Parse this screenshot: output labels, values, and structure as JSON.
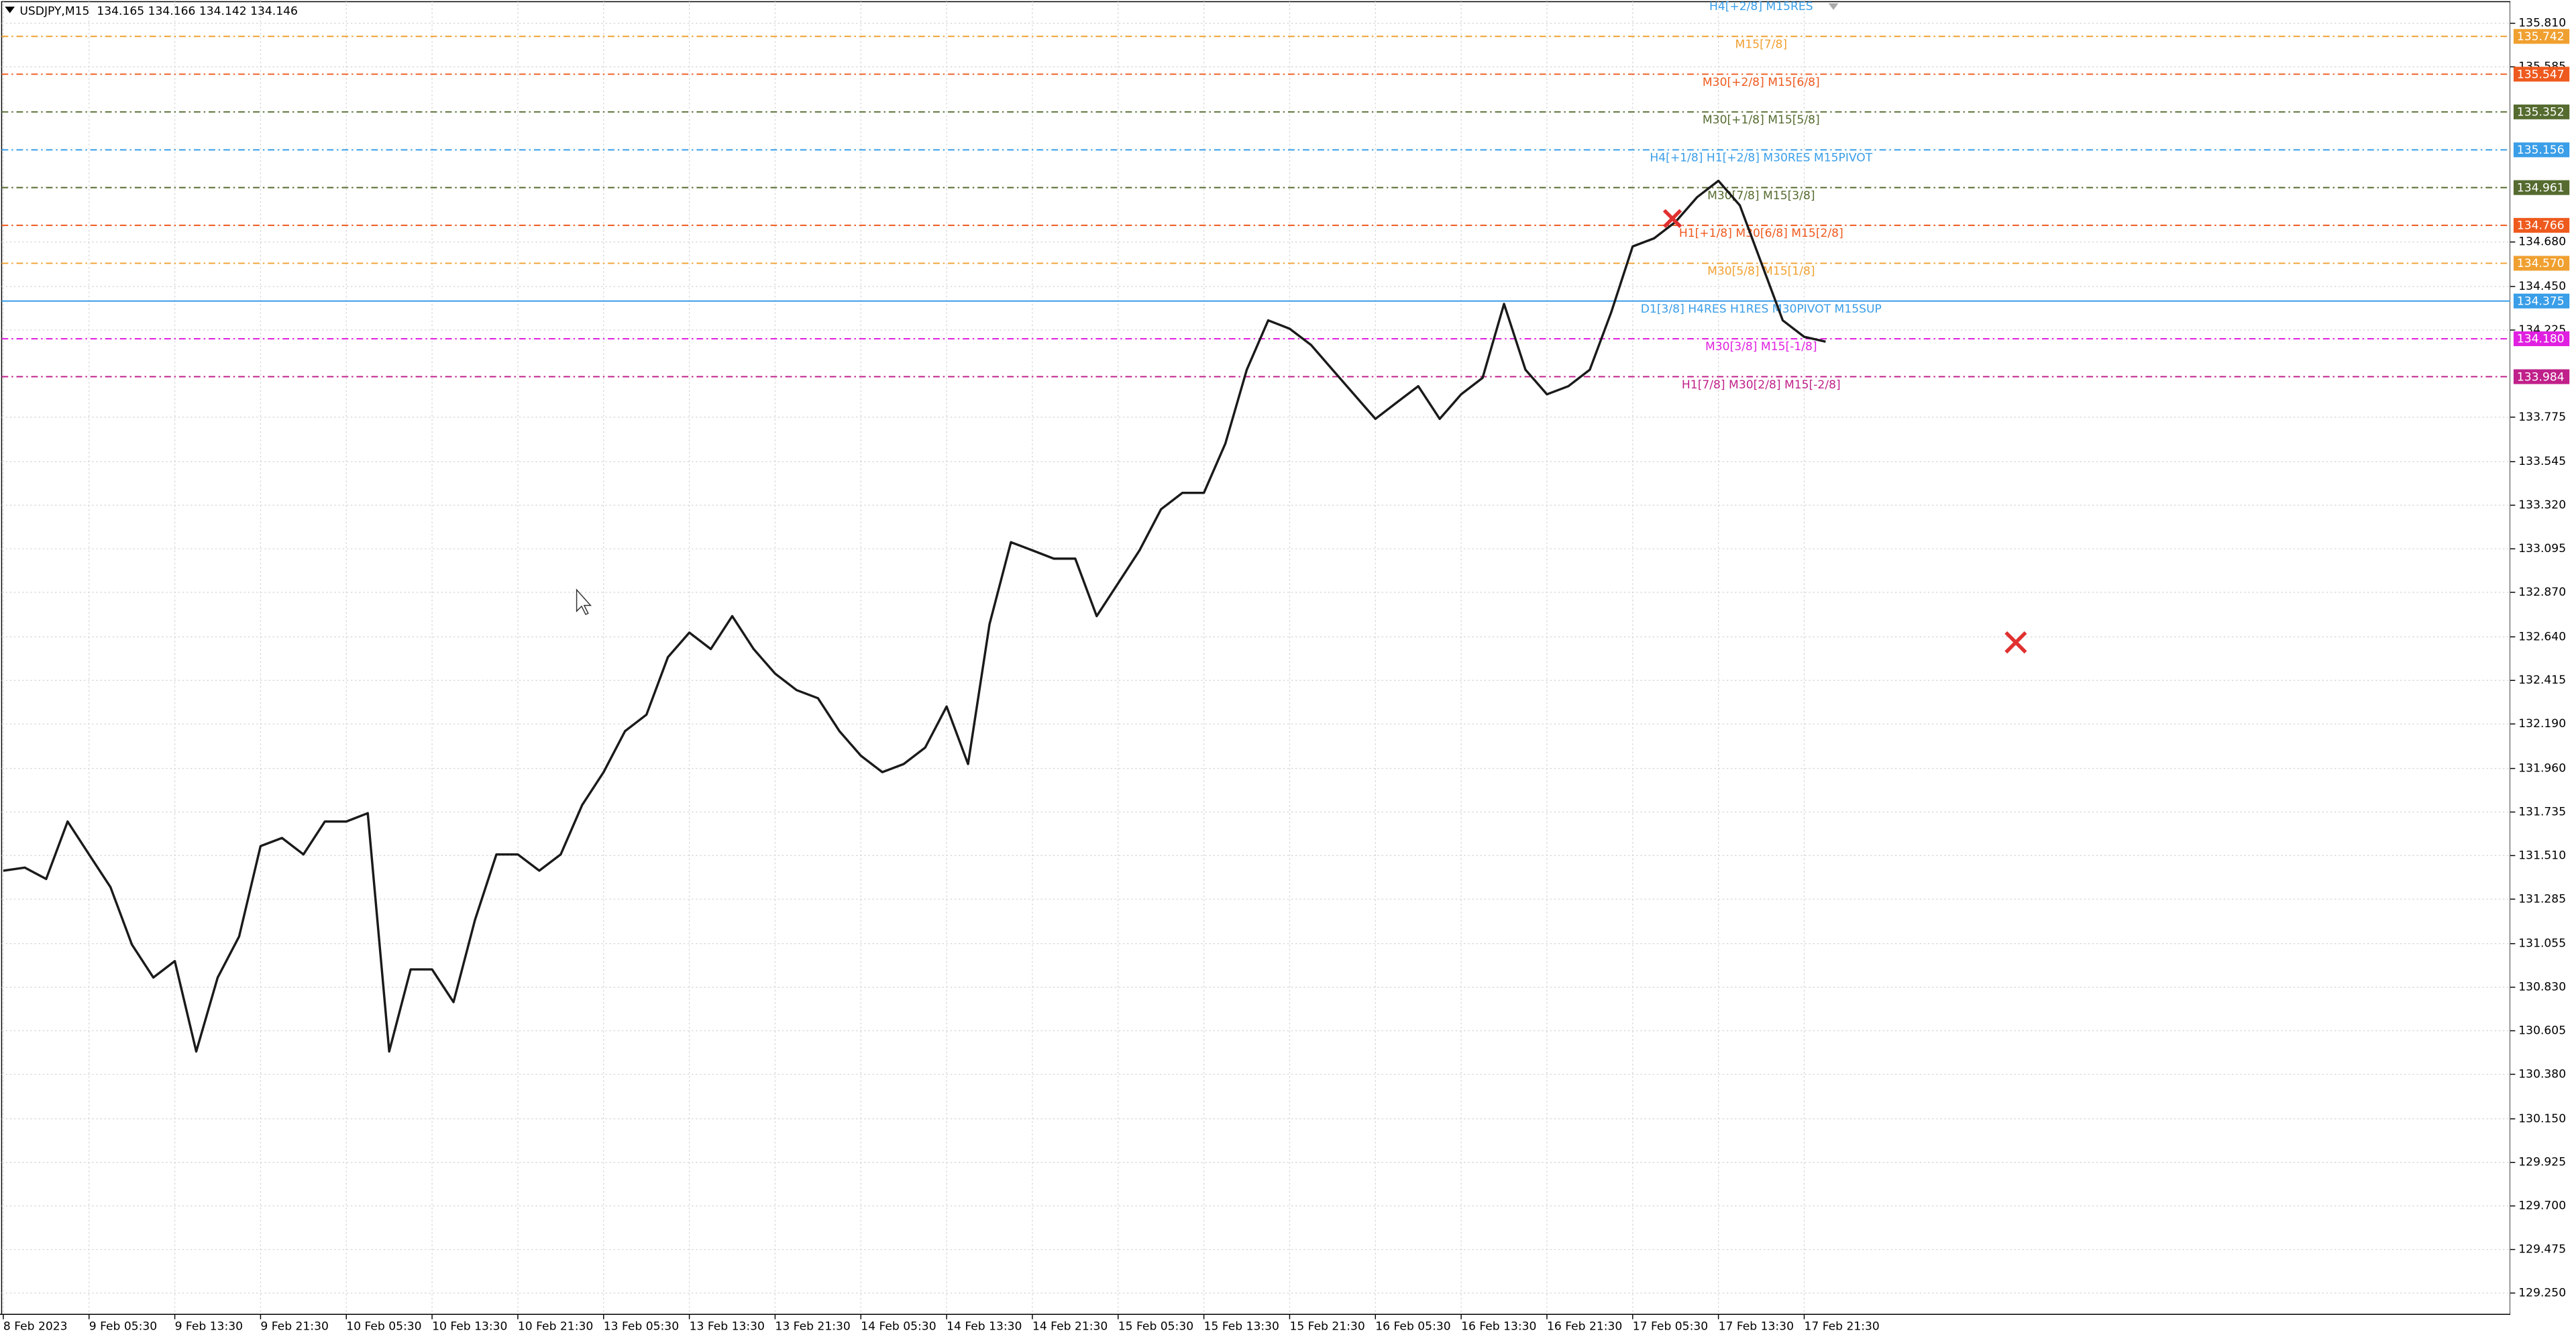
{
  "chart_data": {
    "type": "line",
    "title": "USDJPY,M15  134.165 134.166 134.142 134.146",
    "top_level_label": "H4[+2/8] M15RES",
    "color": "#1a1a1a",
    "grid": true,
    "ylim": [
      129.14,
      135.93
    ],
    "yticks": [
      {
        "value": 135.81,
        "label": "135.810"
      },
      {
        "value": 135.585,
        "label": "135.585"
      },
      {
        "value": 134.68,
        "label": "134.680"
      },
      {
        "value": 134.45,
        "label": "134.450"
      },
      {
        "value": 134.225,
        "label": "134.225"
      },
      {
        "value": 133.775,
        "label": "133.775"
      },
      {
        "value": 133.545,
        "label": "133.545"
      },
      {
        "value": 133.32,
        "label": "133.320"
      },
      {
        "value": 133.095,
        "label": "133.095"
      },
      {
        "value": 132.87,
        "label": "132.870"
      },
      {
        "value": 132.64,
        "label": "132.640"
      },
      {
        "value": 132.415,
        "label": "132.415"
      },
      {
        "value": 132.19,
        "label": "132.190"
      },
      {
        "value": 131.96,
        "label": "131.960"
      },
      {
        "value": 131.735,
        "label": "131.735"
      },
      {
        "value": 131.51,
        "label": "131.510"
      },
      {
        "value": 131.285,
        "label": "131.285"
      },
      {
        "value": 131.055,
        "label": "131.055"
      },
      {
        "value": 130.83,
        "label": "130.830"
      },
      {
        "value": 130.605,
        "label": "130.605"
      },
      {
        "value": 130.38,
        "label": "130.380"
      },
      {
        "value": 130.15,
        "label": "130.150"
      },
      {
        "value": 129.925,
        "label": "129.925"
      },
      {
        "value": 129.7,
        "label": "129.700"
      },
      {
        "value": 129.475,
        "label": "129.475"
      },
      {
        "value": 129.25,
        "label": "129.250"
      }
    ],
    "categories": [
      "8 Feb 2023",
      null,
      null,
      null,
      "9 Feb 05:30",
      null,
      null,
      null,
      "9 Feb 13:30",
      null,
      null,
      null,
      "9 Feb 21:30",
      null,
      null,
      null,
      "10 Feb 05:30",
      null,
      null,
      null,
      "10 Feb 13:30",
      null,
      null,
      null,
      "10 Feb 21:30",
      null,
      null,
      null,
      "13 Feb 05:30",
      null,
      null,
      null,
      "13 Feb 13:30",
      null,
      null,
      null,
      "13 Feb 21:30",
      null,
      null,
      null,
      "14 Feb 05:30",
      null,
      null,
      null,
      "14 Feb 13:30",
      null,
      null,
      null,
      "14 Feb 21:30",
      null,
      null,
      null,
      "15 Feb 05:30",
      null,
      null,
      null,
      "15 Feb 13:30",
      null,
      null,
      null,
      "15 Feb 21:30",
      null,
      null,
      null,
      "16 Feb 05:30",
      null,
      null,
      null,
      "16 Feb 13:30",
      null,
      null,
      null,
      "16 Feb 21:30",
      null,
      null,
      null,
      "17 Feb 05:30",
      null,
      null,
      null,
      "17 Feb 13:30",
      null,
      null,
      null,
      "17 Feb 21:30",
      null,
      null,
      null
    ],
    "values": [
      131.432,
      131.448,
      131.389,
      131.686,
      131.516,
      131.347,
      131.05,
      130.88,
      130.965,
      130.498,
      130.88,
      131.092,
      131.559,
      131.601,
      131.516,
      131.686,
      131.686,
      131.729,
      130.498,
      130.922,
      130.922,
      130.753,
      131.177,
      131.516,
      131.516,
      131.432,
      131.516,
      131.771,
      131.941,
      132.153,
      132.238,
      132.535,
      132.662,
      132.577,
      132.747,
      132.577,
      132.45,
      132.365,
      132.323,
      132.153,
      132.026,
      131.941,
      131.983,
      132.068,
      132.28,
      131.983,
      132.705,
      133.129,
      133.087,
      133.044,
      133.044,
      132.747,
      132.917,
      133.087,
      133.299,
      133.384,
      133.384,
      133.638,
      134.02,
      134.275,
      134.232,
      134.148,
      134.02,
      133.893,
      133.766,
      133.851,
      133.935,
      133.766,
      133.893,
      133.978,
      134.36,
      134.02,
      133.893,
      133.935,
      134.02,
      134.317,
      134.657,
      134.699,
      134.784,
      134.911,
      134.996,
      134.869,
      134.572,
      134.275,
      134.19,
      134.165,
      null,
      null
    ],
    "levels": [
      {
        "value": 135.742,
        "label": "M15[7/8]",
        "color": "#f0a030",
        "dashed": true
      },
      {
        "value": 135.547,
        "label": "M30[+2/8] M15[6/8]",
        "color": "#ee5a1e",
        "dashed": true
      },
      {
        "value": 135.352,
        "label": "M30[+1/8] M15[5/8]",
        "color": "#556b2f",
        "dashed": true
      },
      {
        "value": 135.156,
        "label": "H4[+1/8] H1[+2/8] M30RES M15PIVOT",
        "color": "#3a9ee8",
        "dashed": true
      },
      {
        "value": 134.961,
        "label": "M30[7/8] M15[3/8]",
        "color": "#556b2f",
        "dashed": true
      },
      {
        "value": 134.766,
        "label": "H1[+1/8] M30[6/8] M15[2/8]",
        "color": "#ee5a1e",
        "dashed": true
      },
      {
        "value": 134.57,
        "value_label": "134.570",
        "label": "M30[5/8] M15[1/8]",
        "color": "#f0a030",
        "dashed": true
      },
      {
        "value": 134.375,
        "label": "D1[3/8] H4RES H1RES M30PIVOT M15SUP",
        "color": "#3a9ee8",
        "dashed": false
      },
      {
        "value": 134.18,
        "value_label": "134.180",
        "label": "M30[3/8] M15[-1/8]",
        "color": "#e020e0",
        "dashed": true
      },
      {
        "value": 133.984,
        "label": "H1[7/8] M30[2/8] M15[-2/8]",
        "color": "#c0208a",
        "dashed": true
      }
    ]
  }
}
